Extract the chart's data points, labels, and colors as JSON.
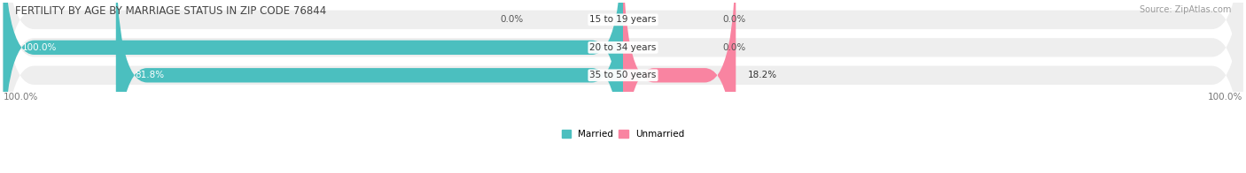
{
  "title": "FERTILITY BY AGE BY MARRIAGE STATUS IN ZIP CODE 76844",
  "source": "Source: ZipAtlas.com",
  "categories": [
    "15 to 19 years",
    "20 to 34 years",
    "35 to 50 years"
  ],
  "married_pct": [
    0.0,
    100.0,
    81.8
  ],
  "unmarried_pct": [
    0.0,
    0.0,
    18.2
  ],
  "married_color": "#4bbfbf",
  "unmarried_color": "#f984a1",
  "bar_bg_color": "#eeeeee",
  "background_color": "#ffffff",
  "title_fontsize": 8.5,
  "source_fontsize": 7,
  "label_fontsize": 7.5,
  "tick_fontsize": 7.5,
  "left_axis_label": "100.0%",
  "right_axis_label": "100.0%"
}
